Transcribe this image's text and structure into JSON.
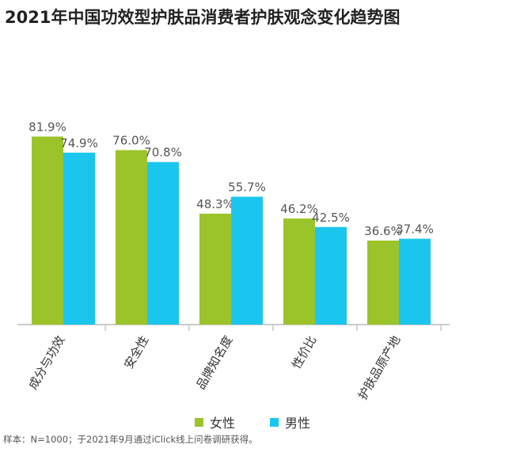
{
  "title": "2021年中国功效型护肤品消费者护肤观念变化趋势图",
  "source_note": "样本：N=1000；于2021年9月通过iClick线上问卷调研获得。",
  "colors": {
    "female": "#9BC42A",
    "male": "#1BC6EE",
    "axis": "#BBBBBB"
  },
  "chart_data": {
    "type": "bar",
    "categories": [
      "成分与功效",
      "安全性",
      "品牌知名度",
      "性价比",
      "护肤品原产地"
    ],
    "series": [
      {
        "name": "女性",
        "values": [
          81.9,
          76.0,
          48.3,
          46.2,
          36.6
        ],
        "labels": [
          "81.9%",
          "76.0%",
          "48.3%",
          "46.2%",
          "36.6%"
        ],
        "color": "#9BC42A"
      },
      {
        "name": "男性",
        "values": [
          74.9,
          70.8,
          55.7,
          42.5,
          37.4
        ],
        "labels": [
          "74.9%",
          "70.8%",
          "55.7%",
          "42.5%",
          "37.4%"
        ],
        "color": "#1BC6EE"
      }
    ],
    "ylim": [
      0,
      100
    ],
    "grid": false,
    "legend_position": "bottom-center",
    "title": "2021年中国功效型护肤品消费者护肤观念变化趋势图",
    "xlabel": "",
    "ylabel": ""
  }
}
